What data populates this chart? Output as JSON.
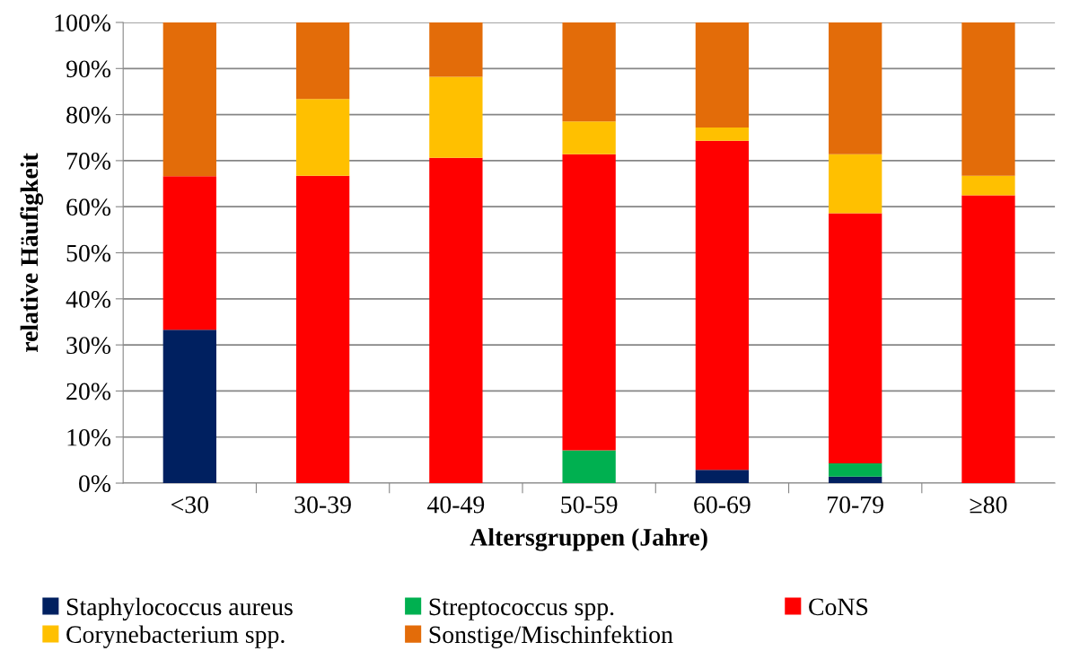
{
  "chart_data": {
    "type": "bar",
    "stacked": true,
    "xlabel": "Altersgruppen (Jahre)",
    "ylabel": "relative Häufigkeit",
    "categories": [
      "<30",
      "30-39",
      "40-49",
      "50-59",
      "60-69",
      "70-79",
      "≥80"
    ],
    "series": [
      {
        "name": "Staphylococcus aureus",
        "color": "#002060",
        "values": [
          33.3,
          0,
          0,
          0,
          2.9,
          1.4,
          0
        ]
      },
      {
        "name": "Streptococcus spp.",
        "color": "#00b050",
        "values": [
          0,
          0,
          0,
          7.1,
          0,
          2.9,
          0
        ]
      },
      {
        "name": "CoNS",
        "color": "#ff0000",
        "values": [
          33.3,
          66.7,
          70.6,
          64.3,
          71.4,
          54.3,
          62.5
        ]
      },
      {
        "name": "Corynebacterium spp.",
        "color": "#ffc000",
        "values": [
          0,
          16.7,
          17.6,
          7.1,
          2.9,
          12.8,
          4.2
        ]
      },
      {
        "name": "Sonstige/Mischinfektion",
        "color": "#e36c09",
        "values": [
          33.4,
          16.6,
          11.8,
          21.5,
          22.8,
          28.6,
          33.3
        ]
      }
    ],
    "ylim": [
      0,
      100
    ],
    "yticks": [
      {
        "value": 0,
        "label": "0%"
      },
      {
        "value": 10,
        "label": "10%"
      },
      {
        "value": 20,
        "label": "20%"
      },
      {
        "value": 30,
        "label": "30%"
      },
      {
        "value": 40,
        "label": "40%"
      },
      {
        "value": 50,
        "label": "50%"
      },
      {
        "value": 60,
        "label": "60%"
      },
      {
        "value": 70,
        "label": "70%"
      },
      {
        "value": 80,
        "label": "80%"
      },
      {
        "value": 90,
        "label": "90%"
      },
      {
        "value": 100,
        "label": "100%"
      }
    ],
    "grid": "y",
    "legend": "bottom"
  }
}
